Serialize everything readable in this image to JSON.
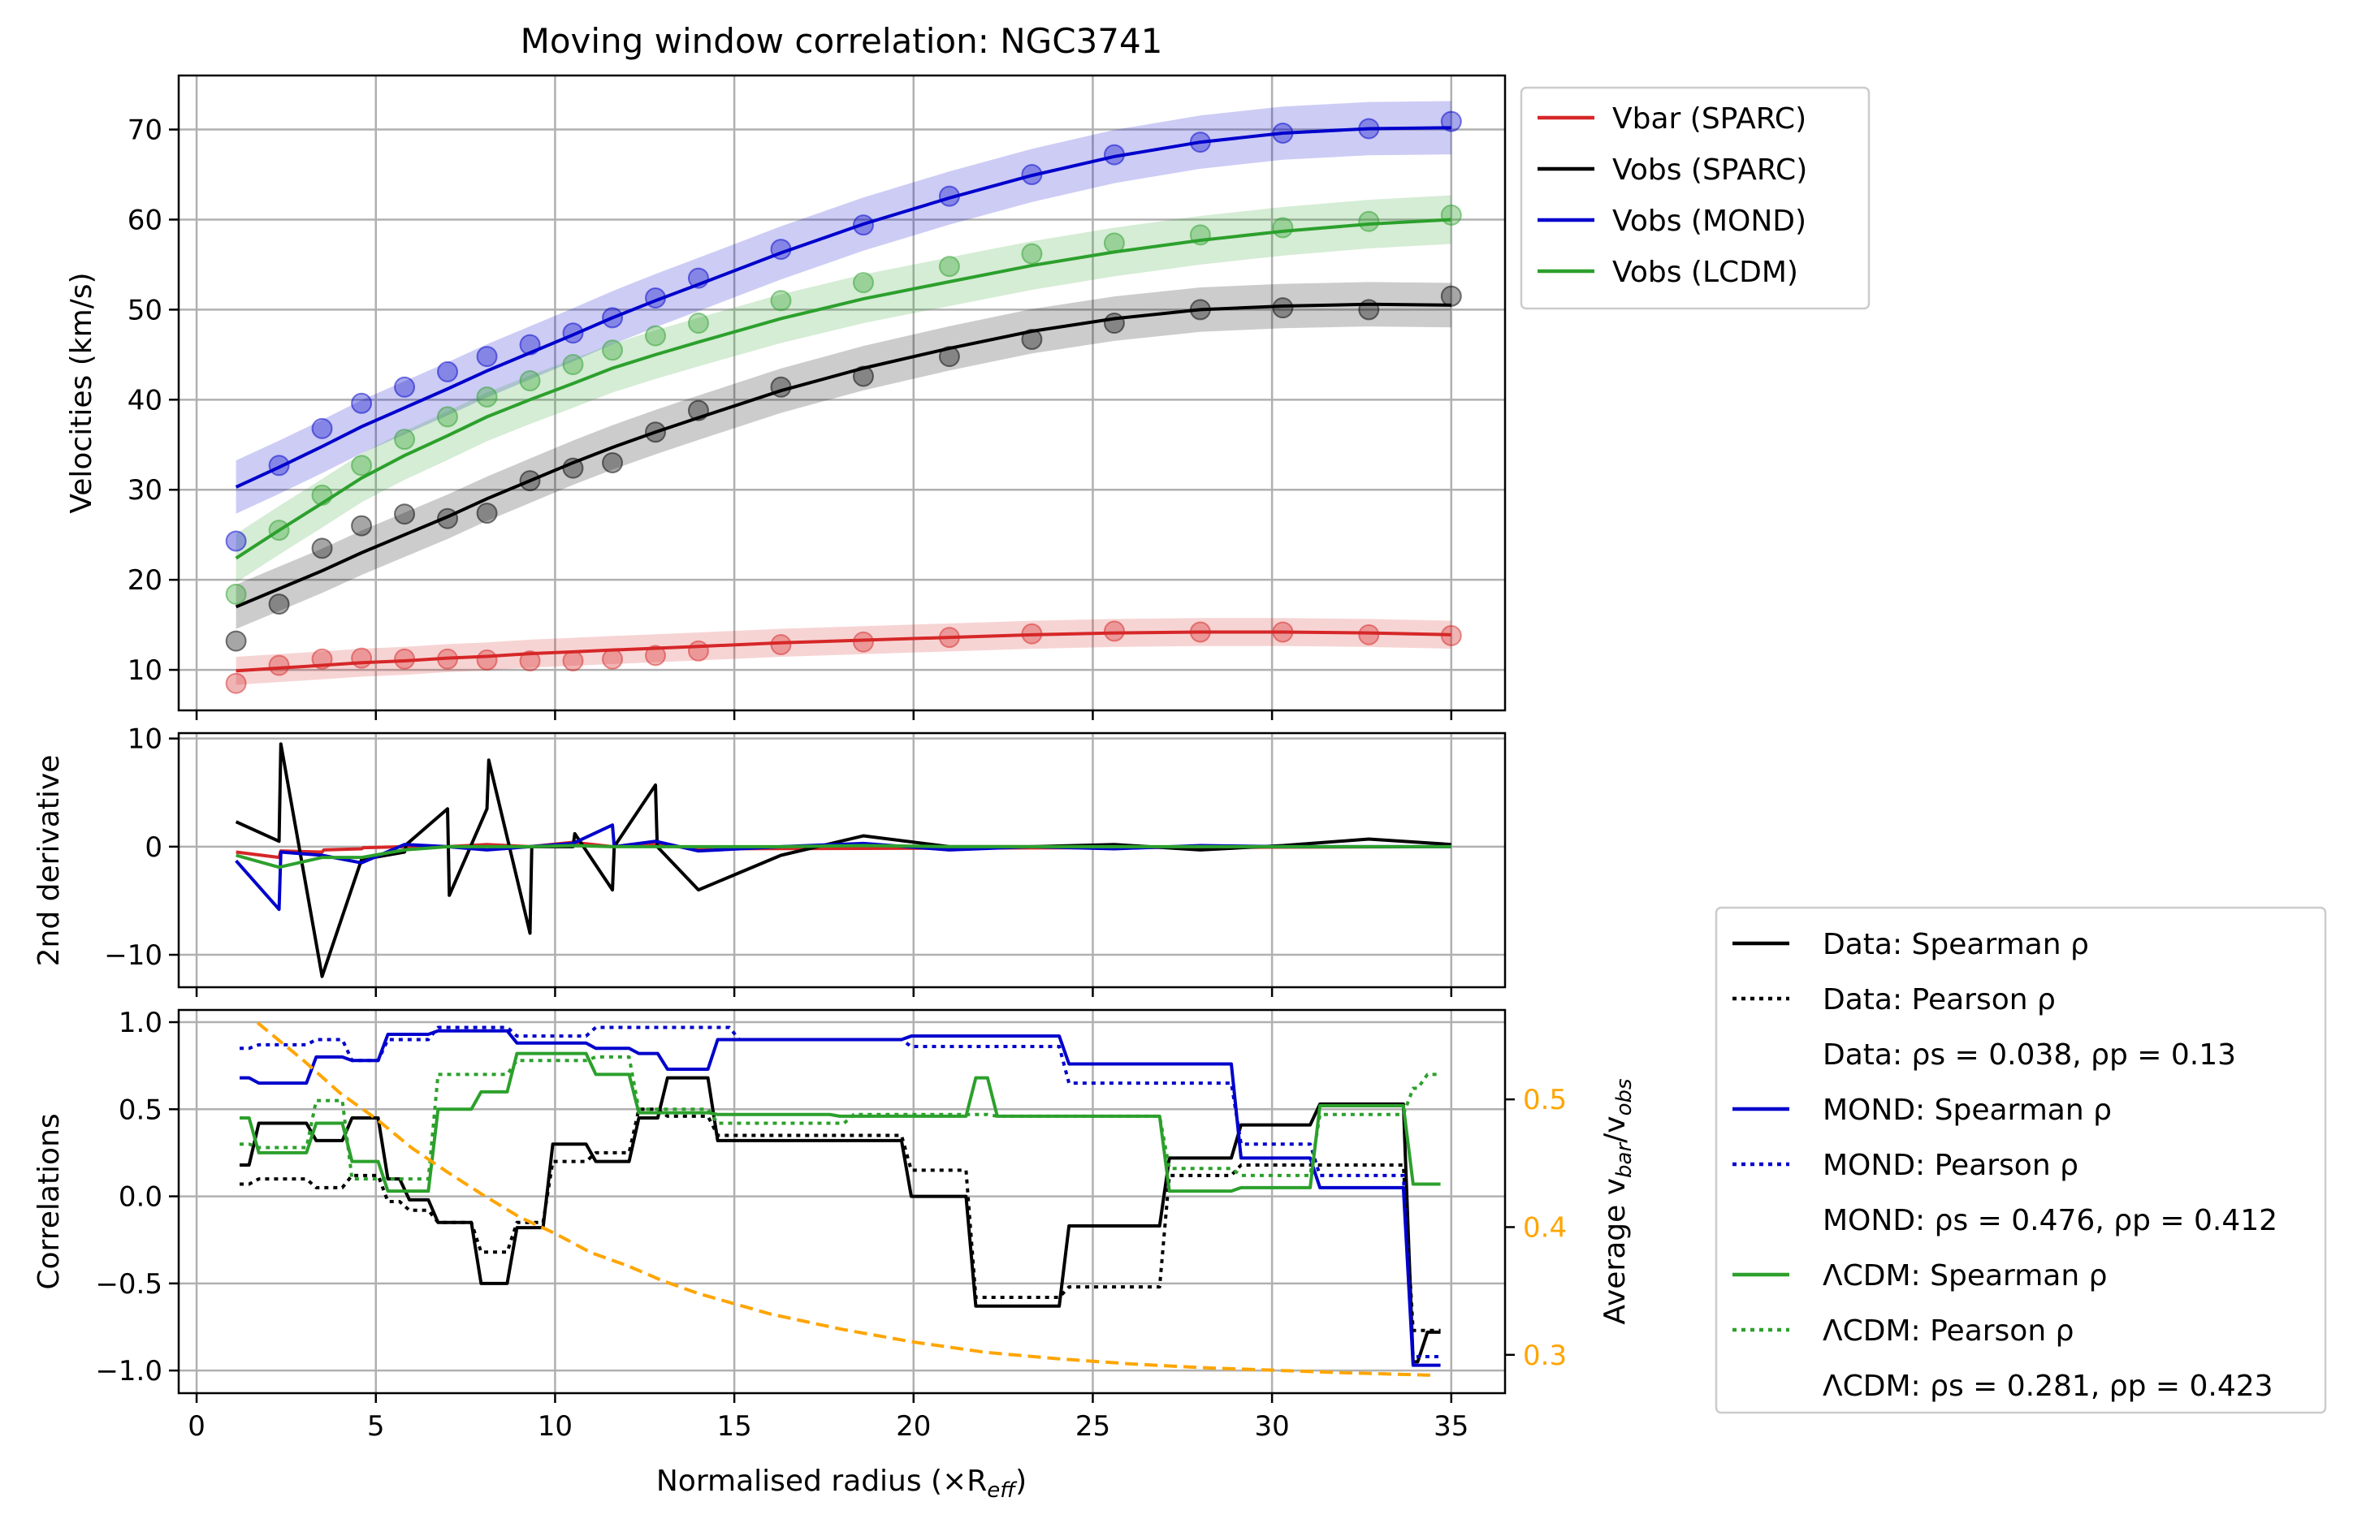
{
  "chart_data": [
    {
      "type": "line",
      "title": "Moving window correlation: NGC3741",
      "xlabel": "",
      "ylabel": "Velocities (km/s)",
      "xlim": [
        -0.5,
        36.5
      ],
      "ylim": [
        5.5,
        76
      ],
      "xticks": [
        0,
        5,
        10,
        15,
        20,
        25,
        30,
        35
      ],
      "yticks": [
        10,
        20,
        30,
        40,
        50,
        60,
        70
      ],
      "grid": true,
      "legend": "outside top-right",
      "x": [
        1.1,
        2.3,
        3.5,
        4.6,
        5.8,
        7.0,
        8.1,
        9.3,
        10.5,
        11.6,
        12.8,
        14.0,
        16.3,
        18.6,
        21.0,
        23.3,
        25.6,
        28.0,
        30.3,
        32.7,
        35.0
      ],
      "series": [
        {
          "name": "Vbar (SPARC)",
          "color": "#d62728",
          "points": [
            8.5,
            10.5,
            11.2,
            11.3,
            11.2,
            11.2,
            11.1,
            11.0,
            11.0,
            11.2,
            11.6,
            12.1,
            12.8,
            13.1,
            13.6,
            14.0,
            14.3,
            14.2,
            14.2,
            13.9,
            13.8
          ],
          "fit": [
            9.9,
            10.2,
            10.5,
            10.8,
            11.0,
            11.3,
            11.5,
            11.8,
            12.0,
            12.2,
            12.4,
            12.6,
            13.0,
            13.3,
            13.6,
            13.9,
            14.1,
            14.2,
            14.2,
            14.1,
            13.9
          ]
        },
        {
          "name": "Vobs (SPARC)",
          "color": "#000000",
          "points": [
            13.2,
            17.3,
            23.5,
            26.0,
            27.3,
            26.8,
            27.4,
            31.0,
            32.4,
            33.0,
            36.4,
            38.8,
            41.4,
            42.6,
            44.8,
            46.7,
            48.5,
            50.0,
            50.2,
            50.0,
            51.5
          ],
          "fit": [
            17.0,
            19.0,
            21.0,
            23.0,
            25.0,
            27.0,
            29.0,
            31.0,
            33.0,
            34.7,
            36.4,
            38.0,
            41.0,
            43.5,
            45.7,
            47.6,
            49.0,
            50.0,
            50.4,
            50.6,
            50.5
          ]
        },
        {
          "name": "Vobs (MOND)",
          "color": "#0000cc",
          "points": [
            24.3,
            32.7,
            36.8,
            39.6,
            41.4,
            43.1,
            44.8,
            46.1,
            47.4,
            49.1,
            51.3,
            53.5,
            56.7,
            59.4,
            62.6,
            65.0,
            67.2,
            68.6,
            69.6,
            70.1,
            70.9
          ],
          "fit": [
            30.3,
            32.5,
            34.8,
            37.0,
            39.1,
            41.2,
            43.2,
            45.2,
            47.2,
            49.1,
            51.0,
            52.8,
            56.3,
            59.5,
            62.4,
            64.9,
            67.0,
            68.6,
            69.6,
            70.1,
            70.2
          ]
        },
        {
          "name": "Vobs (LCDM)",
          "color": "#2ca02c",
          "points": [
            18.4,
            25.5,
            29.4,
            32.7,
            35.6,
            38.1,
            40.3,
            42.1,
            43.9,
            45.5,
            47.1,
            48.5,
            51.0,
            53.0,
            54.8,
            56.2,
            57.4,
            58.3,
            59.1,
            59.8,
            60.5
          ],
          "fit": [
            22.4,
            25.5,
            28.5,
            31.3,
            33.8,
            36.0,
            38.1,
            40.0,
            41.8,
            43.5,
            45.0,
            46.4,
            49.0,
            51.2,
            53.1,
            54.9,
            56.4,
            57.7,
            58.7,
            59.5,
            60.0
          ]
        }
      ]
    },
    {
      "type": "line",
      "title": "",
      "xlabel": "",
      "ylabel": "2nd derivative",
      "xlim": [
        -0.5,
        36.5
      ],
      "ylim": [
        -13,
        10.5
      ],
      "yticks": [
        10,
        0,
        -10
      ],
      "ytick_labels": [
        "10",
        "0",
        "−10"
      ],
      "grid": true,
      "series": [
        {
          "color": "#d62728",
          "x": [
            1.1,
            2.3,
            2.35,
            3.5,
            3.55,
            4.6,
            4.65,
            5.8,
            7.0,
            8.1,
            9.3,
            10.5,
            11.6,
            12.8,
            14.0,
            35.0
          ],
          "y": [
            -0.5,
            -1.0,
            -0.4,
            -0.5,
            -0.3,
            -0.2,
            -0.1,
            0.0,
            0.0,
            0.2,
            0.0,
            0.4,
            0.0,
            0.2,
            -0.2,
            0.0
          ]
        },
        {
          "color": "#000000",
          "x": [
            1.1,
            2.3,
            2.35,
            3.5,
            4.6,
            5.8,
            5.85,
            7.0,
            7.05,
            8.1,
            8.15,
            9.3,
            9.35,
            10.5,
            10.55,
            11.6,
            11.65,
            12.8,
            12.85,
            14.0,
            16.3,
            18.6,
            21.0,
            23.3,
            25.6,
            28.0,
            30.3,
            32.7,
            35.0
          ],
          "y": [
            2.3,
            0.5,
            9.5,
            -12.0,
            -1.2,
            -0.5,
            0.2,
            3.5,
            -4.5,
            3.5,
            8.0,
            -8.0,
            0.0,
            0.0,
            1.2,
            -4.0,
            0.0,
            5.7,
            0.0,
            -4.0,
            -0.8,
            1.0,
            0.0,
            0.0,
            0.2,
            -0.3,
            0.1,
            0.7,
            0.2
          ]
        },
        {
          "color": "#0000cc",
          "x": [
            1.1,
            2.3,
            2.35,
            3.5,
            4.6,
            5.8,
            7.0,
            8.1,
            9.3,
            10.5,
            11.6,
            11.65,
            12.8,
            14.0,
            16.3,
            18.6,
            21.0,
            23.3,
            25.6,
            28.0,
            30.3,
            32.7,
            35.0
          ],
          "y": [
            -1.3,
            -5.8,
            -0.5,
            -0.8,
            -1.5,
            0.2,
            0.0,
            -0.3,
            0.0,
            0.3,
            2.0,
            0.0,
            0.5,
            -0.4,
            0.0,
            0.3,
            -0.3,
            0.0,
            -0.2,
            0.1,
            0.0,
            0.0,
            0.0
          ]
        },
        {
          "color": "#2ca02c",
          "x": [
            1.1,
            2.3,
            3.5,
            4.6,
            5.8,
            7.0,
            8.1,
            9.3,
            10.5,
            11.6,
            12.8,
            14.0,
            16.3,
            18.6,
            21.0,
            23.3,
            25.6,
            28.0,
            30.3,
            32.7,
            35.0
          ],
          "y": [
            -0.8,
            -1.9,
            -1.0,
            -1.0,
            -0.3,
            0.0,
            0.0,
            0.0,
            0.1,
            0.0,
            0.0,
            0.0,
            0.0,
            0.1,
            0.0,
            0.0,
            0.0,
            0.0,
            0.0,
            0.0,
            0.0
          ]
        }
      ]
    },
    {
      "type": "line",
      "title": "",
      "xlabel": "Normalised radius (×R",
      "xlabel_sub": "eff",
      "xlabel_end": ")",
      "ylabel": "Correlations",
      "y2label_prefix": "Average v",
      "y2label_sub1": "bar",
      "y2label_mid": "/v",
      "y2label_sub2": "obs",
      "xlim": [
        -0.5,
        36.5
      ],
      "xticks": [
        0,
        5,
        10,
        15,
        20,
        25,
        30,
        35
      ],
      "ylim": [
        -1.13,
        1.07
      ],
      "yticks": [
        1.0,
        0.5,
        0.0,
        -0.5,
        -1.0
      ],
      "ytick_labels": [
        "1.0",
        "0.5",
        "0.0",
        "−0.5",
        "−1.0"
      ],
      "y2lim": [
        0.27,
        0.57
      ],
      "y2ticks": [
        0.5,
        0.4,
        0.3
      ],
      "y2tick_labels": [
        "0.5",
        "0.4",
        "0.3"
      ],
      "y2color": "#ffa500",
      "grid": true,
      "legend": "outside bottom-right",
      "legend_entries": [
        {
          "style": "solid",
          "color": "#000000",
          "label": "Data: Spearman ρ"
        },
        {
          "style": "dotted",
          "color": "#000000",
          "label": "Data: Pearson ρ"
        },
        {
          "style": "none",
          "color": "",
          "label": "Data: ρs = 0.038, ρp = 0.13"
        },
        {
          "style": "solid",
          "color": "#0000cc",
          "label": "MOND: Spearman ρ"
        },
        {
          "style": "dotted",
          "color": "#0000cc",
          "label": "MOND: Pearson ρ"
        },
        {
          "style": "none",
          "color": "",
          "label": "MOND: ρs = 0.476, ρp = 0.412"
        },
        {
          "style": "solid",
          "color": "#2ca02c",
          "label": "ΛCDM: Spearman ρ"
        },
        {
          "style": "dotted",
          "color": "#2ca02c",
          "label": "ΛCDM: Pearson ρ"
        },
        {
          "style": "none",
          "color": "",
          "label": "ΛCDM: ρs = 0.281, ρp = 0.423"
        }
      ],
      "series": [
        {
          "color": "#000000",
          "style": "solid",
          "steps": [
            [
              1.2,
              0.18
            ],
            [
              1.6,
              0.42
            ],
            [
              3.2,
              0.32
            ],
            [
              4.2,
              0.45
            ],
            [
              5.2,
              0.1
            ],
            [
              5.8,
              -0.02
            ],
            [
              6.6,
              -0.15
            ],
            [
              7.8,
              -0.5
            ],
            [
              8.8,
              -0.18
            ],
            [
              9.8,
              0.3
            ],
            [
              11.0,
              0.2
            ],
            [
              12.2,
              0.45
            ],
            [
              13.0,
              0.68
            ],
            [
              14.4,
              0.32
            ],
            [
              19.8,
              0.0
            ],
            [
              21.6,
              -0.63
            ],
            [
              24.2,
              -0.17
            ],
            [
              27.0,
              0.22
            ],
            [
              29.0,
              0.41
            ],
            [
              31.2,
              0.53
            ],
            [
              33.8,
              -0.95
            ],
            [
              34.2,
              -0.78
            ]
          ]
        },
        {
          "color": "#000000",
          "style": "dotted",
          "steps": [
            [
              1.2,
              0.07
            ],
            [
              1.6,
              0.1
            ],
            [
              3.2,
              0.05
            ],
            [
              4.2,
              0.12
            ],
            [
              5.2,
              -0.03
            ],
            [
              5.8,
              -0.08
            ],
            [
              6.6,
              -0.15
            ],
            [
              7.8,
              -0.32
            ],
            [
              8.8,
              -0.15
            ],
            [
              9.8,
              0.2
            ],
            [
              11.0,
              0.25
            ],
            [
              12.2,
              0.5
            ],
            [
              13.0,
              0.46
            ],
            [
              14.4,
              0.35
            ],
            [
              19.8,
              0.15
            ],
            [
              21.6,
              -0.58
            ],
            [
              24.2,
              -0.52
            ],
            [
              27.0,
              0.12
            ],
            [
              29.0,
              0.18
            ],
            [
              31.2,
              0.18
            ],
            [
              33.8,
              -0.77
            ],
            [
              34.2,
              -0.77
            ]
          ]
        },
        {
          "color": "#0000cc",
          "style": "solid",
          "steps": [
            [
              1.2,
              0.68
            ],
            [
              1.6,
              0.65
            ],
            [
              3.2,
              0.8
            ],
            [
              4.2,
              0.78
            ],
            [
              5.2,
              0.93
            ],
            [
              6.6,
              0.95
            ],
            [
              8.8,
              0.88
            ],
            [
              11.0,
              0.85
            ],
            [
              12.2,
              0.82
            ],
            [
              13.0,
              0.73
            ],
            [
              14.4,
              0.9
            ],
            [
              19.8,
              0.92
            ],
            [
              24.2,
              0.76
            ],
            [
              29.0,
              0.22
            ],
            [
              31.2,
              0.05
            ],
            [
              33.8,
              -0.97
            ],
            [
              34.2,
              -0.97
            ]
          ]
        },
        {
          "color": "#0000cc",
          "style": "dotted",
          "steps": [
            [
              1.2,
              0.85
            ],
            [
              1.6,
              0.87
            ],
            [
              3.2,
              0.9
            ],
            [
              4.2,
              0.78
            ],
            [
              5.2,
              0.9
            ],
            [
              6.6,
              0.97
            ],
            [
              8.8,
              0.92
            ],
            [
              11.0,
              0.97
            ],
            [
              15.0,
              0.9
            ],
            [
              19.8,
              0.86
            ],
            [
              24.2,
              0.65
            ],
            [
              29.0,
              0.3
            ],
            [
              31.2,
              0.12
            ],
            [
              33.8,
              -0.92
            ],
            [
              34.2,
              -0.92
            ]
          ]
        },
        {
          "color": "#2ca02c",
          "style": "solid",
          "steps": [
            [
              1.2,
              0.45
            ],
            [
              1.6,
              0.25
            ],
            [
              3.2,
              0.42
            ],
            [
              4.2,
              0.2
            ],
            [
              5.2,
              0.03
            ],
            [
              6.6,
              0.5
            ],
            [
              7.8,
              0.6
            ],
            [
              8.8,
              0.82
            ],
            [
              11.0,
              0.7
            ],
            [
              12.2,
              0.48
            ],
            [
              14.4,
              0.47
            ],
            [
              17.8,
              0.46
            ],
            [
              21.6,
              0.68
            ],
            [
              22.2,
              0.46
            ],
            [
              27.0,
              0.03
            ],
            [
              29.0,
              0.05
            ],
            [
              31.2,
              0.52
            ],
            [
              33.8,
              0.07
            ],
            [
              34.2,
              0.07
            ]
          ]
        },
        {
          "color": "#2ca02c",
          "style": "dotted",
          "steps": [
            [
              1.2,
              0.3
            ],
            [
              1.6,
              0.28
            ],
            [
              3.2,
              0.55
            ],
            [
              4.2,
              0.1
            ],
            [
              5.2,
              0.1
            ],
            [
              6.6,
              0.7
            ],
            [
              7.8,
              0.7
            ],
            [
              8.8,
              0.78
            ],
            [
              11.0,
              0.8
            ],
            [
              12.2,
              0.5
            ],
            [
              14.4,
              0.42
            ],
            [
              18.2,
              0.47
            ],
            [
              22.2,
              0.46
            ],
            [
              27.0,
              0.16
            ],
            [
              29.0,
              0.12
            ],
            [
              31.2,
              0.47
            ],
            [
              33.8,
              0.62
            ],
            [
              34.2,
              0.7
            ]
          ]
        }
      ],
      "ratio_curve": {
        "color": "#ffa500",
        "style": "dashed",
        "x": [
          1.7,
          3,
          4,
          5,
          6,
          7,
          8,
          9,
          10,
          11,
          12,
          13,
          14,
          15,
          16,
          18,
          20,
          22,
          24,
          26,
          28,
          30,
          32,
          34.5
        ],
        "y": [
          0.56,
          0.53,
          0.505,
          0.485,
          0.462,
          0.443,
          0.425,
          0.408,
          0.395,
          0.38,
          0.37,
          0.358,
          0.348,
          0.34,
          0.332,
          0.32,
          0.31,
          0.302,
          0.297,
          0.293,
          0.29,
          0.288,
          0.286,
          0.284
        ]
      }
    }
  ]
}
